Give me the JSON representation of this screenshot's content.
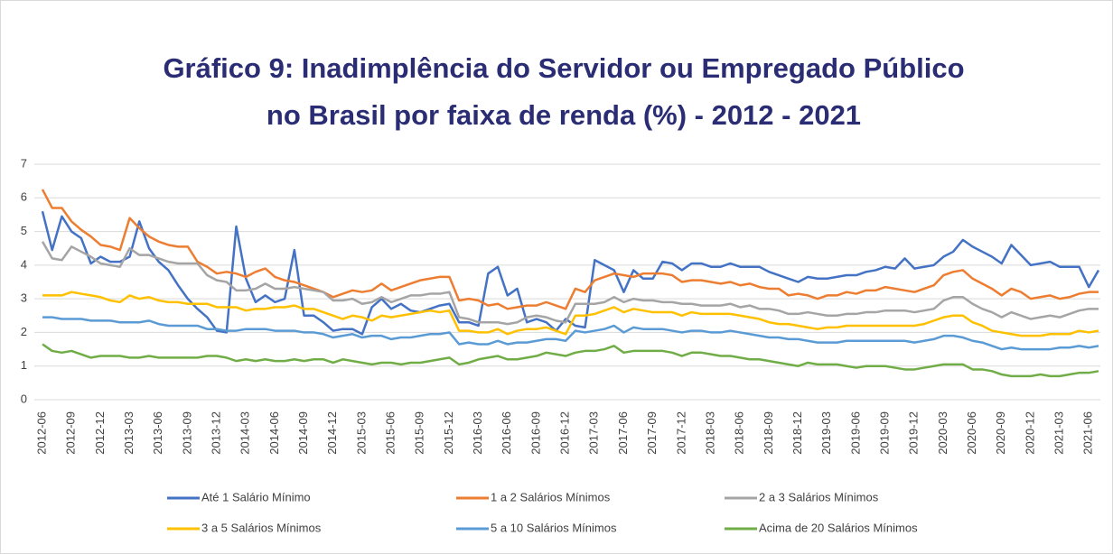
{
  "chart_data": {
    "type": "line",
    "title": [
      "Gráfico 9: Inadimplência do Servidor ou Empregado Público",
      "no Brasil por faixa de renda (%) - 2012 - 2021"
    ],
    "categories": [
      "2012-06",
      null,
      null,
      "2012-09",
      null,
      null,
      "2012-12",
      null,
      null,
      "2013-03",
      null,
      null,
      "2013-06",
      null,
      null,
      "2013-09",
      null,
      null,
      "2013-12",
      null,
      null,
      "2014-03",
      null,
      null,
      "2014-06",
      null,
      null,
      "2014-09",
      null,
      null,
      "2014-12",
      null,
      null,
      "2015-03",
      null,
      null,
      "2015-06",
      null,
      null,
      "2015-09",
      null,
      null,
      "2015-12",
      null,
      null,
      "2016-03",
      null,
      null,
      "2016-06",
      null,
      null,
      "2016-09",
      null,
      null,
      "2016-12",
      null,
      null,
      "2017-03",
      null,
      null,
      "2017-06",
      null,
      null,
      "2017-09",
      null,
      null,
      "2017-12",
      null,
      null,
      "2018-03",
      null,
      null,
      "2018-06",
      null,
      null,
      "2018-09",
      null,
      null,
      "2018-12",
      null,
      null,
      "2019-03",
      null,
      null,
      "2019-06",
      null,
      null,
      "2019-09",
      null,
      null,
      "2019-12",
      null,
      null,
      "2020-03",
      null,
      null,
      "2020-06",
      null,
      null,
      "2020-09",
      null,
      null,
      "2020-12",
      null,
      null,
      "2021-03",
      null,
      null,
      "2021-06",
      null
    ],
    "series": [
      {
        "name": "Até 1 Salário Mínimo",
        "color": "#4472c4",
        "values": [
          5.6,
          4.45,
          5.45,
          5.0,
          4.8,
          4.05,
          4.25,
          4.1,
          4.1,
          4.25,
          5.3,
          4.5,
          4.1,
          3.85,
          3.4,
          3.0,
          2.7,
          2.45,
          2.05,
          2.0,
          5.15,
          3.6,
          2.9,
          3.1,
          2.9,
          3.0,
          4.45,
          2.5,
          2.5,
          2.3,
          2.05,
          2.1,
          2.1,
          1.95,
          2.75,
          3.0,
          2.7,
          2.85,
          2.65,
          2.6,
          2.7,
          2.8,
          2.85,
          2.3,
          2.3,
          2.2,
          3.75,
          3.95,
          3.1,
          3.3,
          2.3,
          2.4,
          2.3,
          2.05,
          2.4,
          2.2,
          2.15,
          4.15,
          4.0,
          3.85,
          3.2,
          3.85,
          3.6,
          3.6,
          4.1,
          4.05,
          3.85,
          4.05,
          4.05,
          3.95,
          3.95,
          4.05,
          3.95,
          3.95,
          3.95,
          3.8,
          3.7,
          3.6,
          3.5,
          3.65,
          3.6,
          3.6,
          3.65,
          3.7,
          3.7,
          3.8,
          3.85,
          3.95,
          3.9,
          4.2,
          3.9,
          3.95,
          4.0,
          4.25,
          4.4,
          4.75,
          4.55,
          4.4,
          4.25,
          4.05,
          4.6,
          4.3,
          4.0,
          4.05,
          4.1,
          3.95,
          3.95,
          3.95,
          3.35,
          3.85
        ]
      },
      {
        "name": "1 a 2 Salários Mínimos",
        "color": "#ed7d31",
        "values": [
          6.25,
          5.7,
          5.7,
          5.3,
          5.05,
          4.85,
          4.6,
          4.55,
          4.45,
          5.4,
          5.1,
          4.85,
          4.7,
          4.6,
          4.55,
          4.55,
          4.1,
          3.95,
          3.75,
          3.8,
          3.75,
          3.65,
          3.8,
          3.9,
          3.65,
          3.55,
          3.5,
          3.4,
          3.3,
          3.2,
          3.05,
          3.15,
          3.25,
          3.2,
          3.25,
          3.45,
          3.25,
          3.35,
          3.45,
          3.55,
          3.6,
          3.65,
          3.65,
          2.95,
          3.0,
          2.95,
          2.8,
          2.85,
          2.7,
          2.75,
          2.8,
          2.8,
          2.9,
          2.8,
          2.7,
          3.3,
          3.2,
          3.55,
          3.65,
          3.75,
          3.7,
          3.65,
          3.75,
          3.75,
          3.75,
          3.7,
          3.5,
          3.55,
          3.55,
          3.5,
          3.45,
          3.5,
          3.4,
          3.45,
          3.35,
          3.3,
          3.3,
          3.1,
          3.15,
          3.1,
          3.0,
          3.1,
          3.1,
          3.2,
          3.15,
          3.25,
          3.25,
          3.35,
          3.3,
          3.25,
          3.2,
          3.3,
          3.4,
          3.7,
          3.8,
          3.85,
          3.6,
          3.45,
          3.3,
          3.1,
          3.3,
          3.2,
          3.0,
          3.05,
          3.1,
          3.0,
          3.05,
          3.15,
          3.2,
          3.2
        ]
      },
      {
        "name": "2 a 3 Salários Mínimos",
        "color": "#a5a5a5",
        "values": [
          4.7,
          4.2,
          4.15,
          4.55,
          4.4,
          4.25,
          4.05,
          4.0,
          3.95,
          4.5,
          4.3,
          4.3,
          4.2,
          4.1,
          4.05,
          4.05,
          4.05,
          3.7,
          3.55,
          3.5,
          3.25,
          3.25,
          3.3,
          3.45,
          3.3,
          3.3,
          3.35,
          3.3,
          3.25,
          3.2,
          2.95,
          2.95,
          3.0,
          2.85,
          2.9,
          3.05,
          2.9,
          3.0,
          3.1,
          3.1,
          3.15,
          3.15,
          3.2,
          2.45,
          2.4,
          2.3,
          2.3,
          2.3,
          2.25,
          2.3,
          2.45,
          2.5,
          2.45,
          2.35,
          2.3,
          2.85,
          2.85,
          2.85,
          2.9,
          3.05,
          2.9,
          3.0,
          2.95,
          2.95,
          2.9,
          2.9,
          2.85,
          2.85,
          2.8,
          2.8,
          2.8,
          2.85,
          2.75,
          2.8,
          2.7,
          2.7,
          2.65,
          2.55,
          2.55,
          2.6,
          2.55,
          2.5,
          2.5,
          2.55,
          2.55,
          2.6,
          2.6,
          2.65,
          2.65,
          2.65,
          2.6,
          2.65,
          2.7,
          2.95,
          3.05,
          3.05,
          2.85,
          2.7,
          2.6,
          2.45,
          2.6,
          2.5,
          2.4,
          2.45,
          2.5,
          2.45,
          2.55,
          2.65,
          2.7,
          2.7
        ]
      },
      {
        "name": "3 a 5 Salários Mínimos",
        "color": "#ffc000",
        "values": [
          3.1,
          3.1,
          3.1,
          3.2,
          3.15,
          3.1,
          3.05,
          2.95,
          2.9,
          3.1,
          3.0,
          3.05,
          2.95,
          2.9,
          2.9,
          2.85,
          2.85,
          2.85,
          2.75,
          2.75,
          2.75,
          2.65,
          2.7,
          2.7,
          2.75,
          2.75,
          2.8,
          2.7,
          2.7,
          2.6,
          2.5,
          2.4,
          2.5,
          2.45,
          2.35,
          2.5,
          2.45,
          2.5,
          2.55,
          2.6,
          2.65,
          2.6,
          2.65,
          2.05,
          2.05,
          2.0,
          2.0,
          2.1,
          1.95,
          2.05,
          2.1,
          2.1,
          2.15,
          2.05,
          1.95,
          2.5,
          2.5,
          2.55,
          2.65,
          2.75,
          2.6,
          2.7,
          2.65,
          2.6,
          2.6,
          2.6,
          2.5,
          2.6,
          2.55,
          2.55,
          2.55,
          2.55,
          2.5,
          2.45,
          2.4,
          2.3,
          2.25,
          2.25,
          2.2,
          2.15,
          2.1,
          2.15,
          2.15,
          2.2,
          2.2,
          2.2,
          2.2,
          2.2,
          2.2,
          2.2,
          2.2,
          2.25,
          2.35,
          2.45,
          2.5,
          2.5,
          2.3,
          2.2,
          2.05,
          2.0,
          1.95,
          1.9,
          1.9,
          1.9,
          1.95,
          1.95,
          1.95,
          2.05,
          2.0,
          2.05
        ]
      },
      {
        "name": "5 a 10 Salários Mínimos",
        "color": "#5b9bd5",
        "values": [
          2.45,
          2.45,
          2.4,
          2.4,
          2.4,
          2.35,
          2.35,
          2.35,
          2.3,
          2.3,
          2.3,
          2.35,
          2.25,
          2.2,
          2.2,
          2.2,
          2.2,
          2.1,
          2.1,
          2.05,
          2.05,
          2.1,
          2.1,
          2.1,
          2.05,
          2.05,
          2.05,
          2.0,
          2.0,
          1.95,
          1.85,
          1.9,
          1.95,
          1.85,
          1.9,
          1.9,
          1.8,
          1.85,
          1.85,
          1.9,
          1.95,
          1.95,
          2.0,
          1.65,
          1.7,
          1.65,
          1.65,
          1.75,
          1.65,
          1.7,
          1.7,
          1.75,
          1.8,
          1.8,
          1.75,
          2.05,
          2.0,
          2.05,
          2.1,
          2.2,
          2.0,
          2.15,
          2.1,
          2.1,
          2.1,
          2.05,
          2.0,
          2.05,
          2.05,
          2.0,
          2.0,
          2.05,
          2.0,
          1.95,
          1.9,
          1.85,
          1.85,
          1.8,
          1.8,
          1.75,
          1.7,
          1.7,
          1.7,
          1.75,
          1.75,
          1.75,
          1.75,
          1.75,
          1.75,
          1.75,
          1.7,
          1.75,
          1.8,
          1.9,
          1.9,
          1.85,
          1.75,
          1.7,
          1.6,
          1.5,
          1.55,
          1.5,
          1.5,
          1.5,
          1.5,
          1.55,
          1.55,
          1.6,
          1.55,
          1.6
        ]
      },
      {
        "name": "Acima de 20 Salários Mínimos",
        "color": "#70ad47",
        "values": [
          1.65,
          1.45,
          1.4,
          1.45,
          1.35,
          1.25,
          1.3,
          1.3,
          1.3,
          1.25,
          1.25,
          1.3,
          1.25,
          1.25,
          1.25,
          1.25,
          1.25,
          1.3,
          1.3,
          1.25,
          1.15,
          1.2,
          1.15,
          1.2,
          1.15,
          1.15,
          1.2,
          1.15,
          1.2,
          1.2,
          1.1,
          1.2,
          1.15,
          1.1,
          1.05,
          1.1,
          1.1,
          1.05,
          1.1,
          1.1,
          1.15,
          1.2,
          1.25,
          1.05,
          1.1,
          1.2,
          1.25,
          1.3,
          1.2,
          1.2,
          1.25,
          1.3,
          1.4,
          1.35,
          1.3,
          1.4,
          1.45,
          1.45,
          1.5,
          1.6,
          1.4,
          1.45,
          1.45,
          1.45,
          1.45,
          1.4,
          1.3,
          1.4,
          1.4,
          1.35,
          1.3,
          1.3,
          1.25,
          1.2,
          1.2,
          1.15,
          1.1,
          1.05,
          1.0,
          1.1,
          1.05,
          1.05,
          1.05,
          1.0,
          0.95,
          1.0,
          1.0,
          1.0,
          0.95,
          0.9,
          0.9,
          0.95,
          1.0,
          1.05,
          1.05,
          1.05,
          0.9,
          0.9,
          0.85,
          0.75,
          0.7,
          0.7,
          0.7,
          0.75,
          0.7,
          0.7,
          0.75,
          0.8,
          0.8,
          0.85
        ]
      }
    ],
    "ylim": [
      0,
      7
    ],
    "yticks": [
      0,
      1,
      2,
      3,
      4,
      5,
      6,
      7
    ],
    "grid": true,
    "legend": "bottom"
  }
}
